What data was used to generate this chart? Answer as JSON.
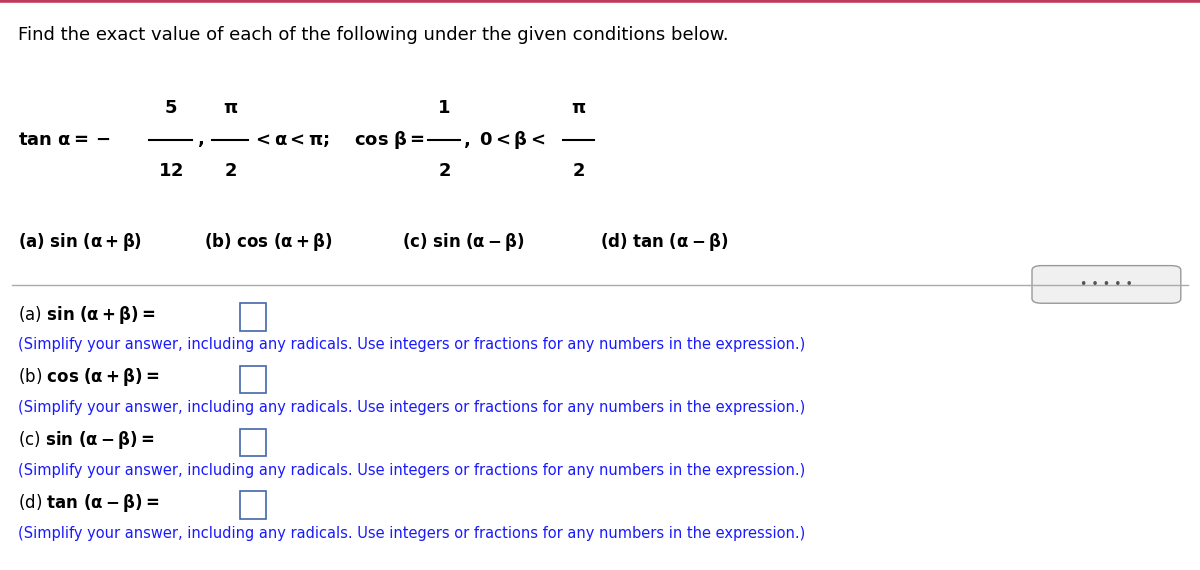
{
  "bg_color": "#ffffff",
  "top_bar_color": "#c0395a",
  "header_text": "Find the exact value of each of the following under the given conditions below.",
  "separator_color": "#aaaaaa",
  "dot_button_color": "#f0f0f0",
  "dot_button_edge": "#999999",
  "blue_color": "#1a1aff",
  "label_color": "#000000",
  "header_fontsize": 13,
  "cond_fontsize": 13,
  "parts_fontsize": 12,
  "answer_label_fontsize": 12,
  "simplify_fontsize": 10.5,
  "simplify_text": "(Simplify your answer, including any radicals. Use integers or fractions for any numbers in the expression.)"
}
